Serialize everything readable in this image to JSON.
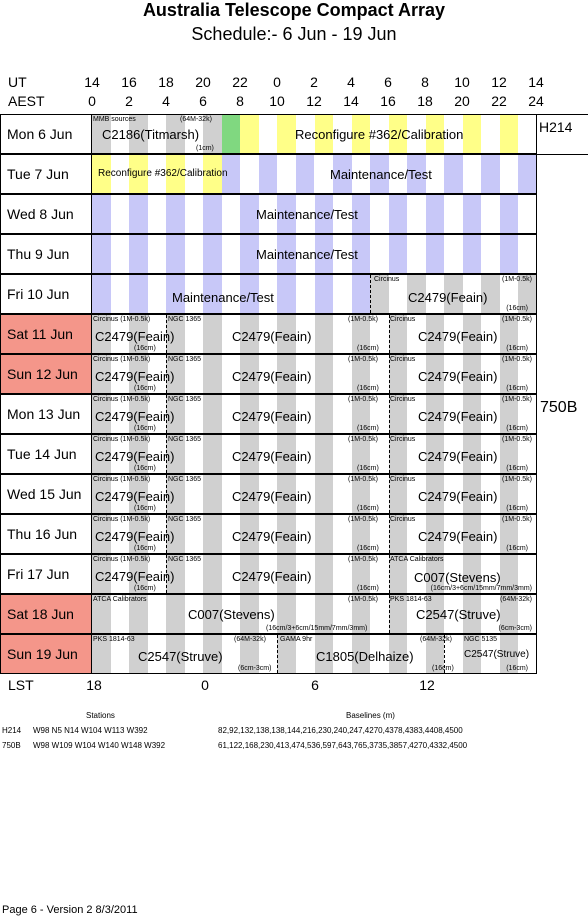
{
  "header": {
    "title": "Australia Telescope Compact Array",
    "subtitle": "Schedule:- 6  Jun - 19 Jun"
  },
  "time_axis": {
    "ut_label": "UT",
    "aest_label": "AEST",
    "ut_ticks": [
      "14",
      "16",
      "18",
      "20",
      "22",
      "0",
      "2",
      "4",
      "6",
      "8",
      "10",
      "12",
      "14"
    ],
    "aest_ticks": [
      "0",
      "2",
      "4",
      "6",
      "8",
      "10",
      "12",
      "14",
      "16",
      "18",
      "20",
      "22",
      "24"
    ],
    "lst_label": "LST",
    "lst_ticks": [
      "18",
      "0",
      "6",
      "12"
    ]
  },
  "configs": [
    {
      "name": "H214"
    },
    {
      "name": "750B"
    }
  ],
  "colors": {
    "weekend": "#f4968a",
    "maintenance_band": "#c8c8f8",
    "reconfig_band": "#ffff88",
    "observe_band": "#d0d0d0",
    "green": "#80d880"
  },
  "days": [
    {
      "label": "Mon   6  Jun",
      "weekend": false,
      "type": "reconfig1",
      "blocks": [
        {
          "name": "C2186(Titmarsh)",
          "src": "MMB sources",
          "src2": "(64M-32k)",
          "bw": "(1cm)"
        },
        {
          "name": "Reconfigure #362/Calibration"
        }
      ]
    },
    {
      "label": "Tue   7  Jun",
      "weekend": false,
      "type": "reconfig2",
      "blocks": [
        {
          "name": "Reconfigure #362/Calibration"
        },
        {
          "name": "Maintenance/Test"
        }
      ]
    },
    {
      "label": "Wed   8  Jun",
      "weekend": false,
      "type": "maint",
      "blocks": [
        {
          "name": "Maintenance/Test"
        }
      ]
    },
    {
      "label": "Thu   9  Jun",
      "weekend": false,
      "type": "maint",
      "blocks": [
        {
          "name": "Maintenance/Test"
        }
      ]
    },
    {
      "label": "Fri    10  Jun",
      "weekend": false,
      "type": "maint-obs",
      "blocks": [
        {
          "name": "Maintenance/Test"
        },
        {
          "name": "C2479(Feain)",
          "src": "Circinus",
          "src2": "(1M-0.5k)",
          "bw": "(16cm)"
        }
      ]
    },
    {
      "label": "Sat    11  Jun",
      "weekend": true,
      "type": "obs",
      "blocks": [
        {
          "name": "C2479(Feain)",
          "src": "Circinus   (1M-0.5k)",
          "bw": "(16cm)"
        },
        {
          "name": "C2479(Feain)",
          "src": "NGC 1365",
          "src2": "(1M-0.5k)",
          "bw": "(16cm)"
        },
        {
          "name": "C2479(Feain)",
          "src": "Circinus",
          "src2": "(1M-0.5k)",
          "bw": "(16cm)"
        }
      ]
    },
    {
      "label": "Sun   12  Jun",
      "weekend": true,
      "type": "obs",
      "blocks": [
        {
          "name": "C2479(Feain)",
          "src": "Circinus   (1M-0.5k)",
          "bw": "(16cm)"
        },
        {
          "name": "C2479(Feain)",
          "src": "NGC 1365",
          "src2": "(1M-0.5k)",
          "bw": "(16cm)"
        },
        {
          "name": "C2479(Feain)",
          "src": "Circinus",
          "src2": "(1M-0.5k)",
          "bw": "(16cm)"
        }
      ]
    },
    {
      "label": "Mon   13  Jun",
      "weekend": false,
      "type": "obs",
      "blocks": [
        {
          "name": "C2479(Feain)",
          "src": "Circinus   (1M-0.5k)",
          "bw": "(16cm)"
        },
        {
          "name": "C2479(Feain)",
          "src": "NGC 1365",
          "src2": "(1M-0.5k)",
          "bw": "(16cm)"
        },
        {
          "name": "C2479(Feain)",
          "src": "Circinus",
          "src2": "(1M-0.5k)",
          "bw": "(16cm)"
        }
      ]
    },
    {
      "label": "Tue   14  Jun",
      "weekend": false,
      "type": "obs",
      "blocks": [
        {
          "name": "C2479(Feain)",
          "src": "Circinus   (1M-0.5k)",
          "bw": "(16cm)"
        },
        {
          "name": "C2479(Feain)",
          "src": "NGC 1365",
          "src2": "(1M-0.5k)",
          "bw": "(16cm)"
        },
        {
          "name": "C2479(Feain)",
          "src": "Circinus",
          "src2": "(1M-0.5k)",
          "bw": "(16cm)"
        }
      ]
    },
    {
      "label": "Wed   15  Jun",
      "weekend": false,
      "type": "obs",
      "blocks": [
        {
          "name": "C2479(Feain)",
          "src": "Circinus   (1M-0.5k)",
          "bw": "(16cm)"
        },
        {
          "name": "C2479(Feain)",
          "src": "NGC 1365",
          "src2": "(1M-0.5k)",
          "bw": "(16cm)"
        },
        {
          "name": "C2479(Feain)",
          "src": "Circinus",
          "src2": "(1M-0.5k)",
          "bw": "(16cm)"
        }
      ]
    },
    {
      "label": "Thu   16  Jun",
      "weekend": false,
      "type": "obs",
      "blocks": [
        {
          "name": "C2479(Feain)",
          "src": "Circinus   (1M-0.5k)",
          "bw": "(16cm)"
        },
        {
          "name": "C2479(Feain)",
          "src": "NGC 1365",
          "src2": "(1M-0.5k)",
          "bw": "(16cm)"
        },
        {
          "name": "C2479(Feain)",
          "src": "Circinus",
          "src2": "(1M-0.5k)",
          "bw": "(16cm)"
        }
      ]
    },
    {
      "label": "Fri    17  Jun",
      "weekend": false,
      "type": "obs17",
      "blocks": [
        {
          "name": "C2479(Feain)",
          "src": "Circinus   (1M-0.5k)",
          "bw": "(16cm)"
        },
        {
          "name": "C2479(Feain)",
          "src": "NGC 1365",
          "src2": "(1M-0.5k)",
          "bw": "(16cm)"
        },
        {
          "name": "C007(Stevens)",
          "src": "ATCA Calibrators",
          "bw": "(16cm/3+6cm/15mm/7mm/3mm)"
        }
      ]
    },
    {
      "label": "Sat    18  Jun",
      "weekend": true,
      "type": "obs18",
      "blocks": [
        {
          "name": "C007(Stevens)",
          "src": "ATCA Calibrators",
          "src2": "(1M-0.5k)",
          "bw": "(16cm/3+6cm/15mm/7mm/3mm)"
        },
        {
          "name": "C2547(Struve)",
          "src": "PKS 1814-63",
          "src2": "(64M-32k)",
          "bw": "(6cm-3cm)"
        }
      ]
    },
    {
      "label": "Sun   19  Jun",
      "weekend": true,
      "type": "obs19",
      "blocks": [
        {
          "name": "C2547(Struve)",
          "src": "PKS 1814-63",
          "src2": "(64M-32k)",
          "bw": "(6cm-3cm)"
        },
        {
          "name": "C1805(Delhaize)",
          "src": "GAMA 9hr",
          "src2": "(64M-32k)",
          "bw": "(16cm)"
        },
        {
          "name": "C2547(Struve)",
          "src": "NGC 5135",
          "bw": "(16cm)"
        }
      ]
    }
  ],
  "footer": {
    "stations_title": "Stations",
    "baselines_title": "Baselines (m)",
    "rows": [
      {
        "config": "H214",
        "stations": "W98 N5 N14 W104 W113 W392",
        "baselines": "82,92,132,138,138,144,216,230,240,247,4270,4378,4383,4408,4500"
      },
      {
        "config": "750B",
        "stations": "W98 W109 W104 W140 W148 W392",
        "baselines": "61,122,168,230,413,474,536,597,643,765,3735,3857,4270,4332,4500"
      }
    ],
    "page_note": "Page 6 - Version 2  8/3/2011"
  }
}
